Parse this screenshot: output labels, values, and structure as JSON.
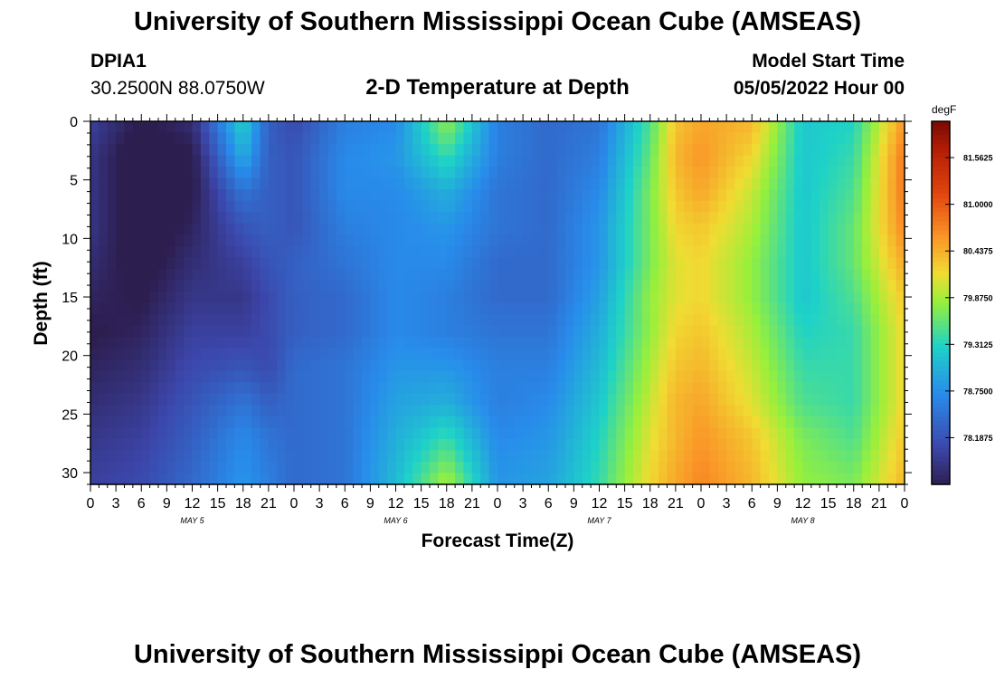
{
  "header": {
    "title": "University of Southern Mississippi Ocean Cube (AMSEAS)",
    "station_id": "DPIA1",
    "station_coords": "30.2500N  88.0750W",
    "plot_title": "2-D Temperature at Depth",
    "start_label": "Model Start Time",
    "start_value": "05/05/2022 Hour 00"
  },
  "footer": {
    "title": "University of Southern Mississippi Ocean Cube (AMSEAS)"
  },
  "chart_data": {
    "type": "heatmap",
    "xlabel": "Forecast Time(Z)",
    "ylabel": "Depth (ft)",
    "x_hours": [
      0,
      6,
      12,
      18,
      21,
      24,
      30,
      36,
      42,
      48,
      54,
      60,
      66,
      69,
      72,
      78,
      84,
      90,
      96
    ],
    "y_depth_ft": [
      0,
      3,
      6,
      9,
      12,
      15,
      18,
      21,
      24,
      27,
      31
    ],
    "values_degF": [
      [
        78.0,
        77.6,
        77.8,
        79.3,
        78.3,
        78.1,
        78.6,
        78.7,
        79.8,
        78.6,
        78.4,
        78.5,
        79.5,
        80.3,
        80.5,
        80.4,
        79.2,
        79.3,
        80.6
      ],
      [
        77.9,
        77.4,
        77.6,
        79.0,
        78.3,
        78.2,
        78.7,
        78.8,
        79.4,
        78.6,
        78.4,
        78.6,
        79.6,
        80.4,
        80.6,
        80.2,
        79.2,
        79.4,
        80.8
      ],
      [
        77.9,
        77.4,
        77.6,
        78.5,
        78.3,
        78.2,
        78.7,
        78.7,
        79.0,
        78.5,
        78.4,
        78.7,
        79.7,
        80.3,
        80.5,
        80.0,
        79.2,
        79.5,
        80.8
      ],
      [
        77.9,
        77.4,
        77.7,
        78.2,
        78.3,
        78.2,
        78.6,
        78.7,
        78.8,
        78.5,
        78.4,
        78.8,
        79.7,
        80.2,
        80.3,
        79.9,
        79.2,
        79.6,
        80.7
      ],
      [
        77.8,
        77.5,
        77.8,
        78.0,
        78.2,
        78.3,
        78.5,
        78.7,
        78.7,
        78.4,
        78.4,
        78.8,
        79.7,
        80.1,
        80.2,
        79.8,
        79.2,
        79.6,
        80.5
      ],
      [
        77.7,
        77.6,
        77.9,
        77.9,
        78.1,
        78.3,
        78.4,
        78.7,
        78.6,
        78.4,
        78.4,
        78.9,
        79.8,
        80.1,
        80.2,
        79.8,
        79.2,
        79.5,
        80.3
      ],
      [
        77.6,
        77.7,
        78.0,
        78.0,
        78.1,
        78.3,
        78.4,
        78.7,
        78.6,
        78.5,
        78.5,
        79.0,
        79.8,
        80.2,
        80.3,
        79.9,
        79.3,
        79.4,
        80.2
      ],
      [
        77.7,
        77.8,
        78.1,
        78.2,
        78.1,
        78.4,
        78.5,
        78.8,
        78.8,
        78.6,
        78.6,
        79.1,
        79.9,
        80.3,
        80.4,
        80.0,
        79.4,
        79.4,
        80.2
      ],
      [
        77.8,
        77.9,
        78.2,
        78.5,
        78.3,
        78.4,
        78.5,
        78.9,
        79.0,
        78.6,
        78.7,
        79.2,
        80.0,
        80.4,
        80.5,
        80.1,
        79.5,
        79.4,
        80.2
      ],
      [
        77.9,
        78.0,
        78.3,
        78.7,
        78.5,
        78.4,
        78.5,
        79.0,
        79.4,
        78.7,
        78.8,
        79.3,
        80.1,
        80.4,
        80.6,
        80.3,
        79.7,
        79.5,
        80.3
      ],
      [
        78.0,
        78.1,
        78.4,
        78.8,
        78.6,
        78.4,
        78.5,
        79.1,
        79.9,
        78.8,
        78.9,
        79.4,
        80.2,
        80.5,
        80.7,
        80.4,
        79.8,
        79.7,
        80.4
      ]
    ],
    "xlim": [
      0,
      96
    ],
    "ylim": [
      0,
      31
    ],
    "y_ticks": [
      0,
      5,
      10,
      15,
      20,
      25,
      30
    ],
    "x_tick_labels": [
      "0",
      "3",
      "6",
      "9",
      "12",
      "15",
      "18",
      "21",
      "0",
      "3",
      "6",
      "9",
      "12",
      "15",
      "18",
      "21",
      "0",
      "3",
      "6",
      "9",
      "12",
      "15",
      "18",
      "21",
      "0",
      "3",
      "6",
      "9",
      "12",
      "15",
      "18",
      "21",
      "0"
    ],
    "day_labels": [
      "MAY 5",
      "MAY 6",
      "MAY 7",
      "MAY 8"
    ],
    "colorbar": {
      "unit": "degF",
      "min": 77.625,
      "max": 82.0,
      "tick_values": [
        81.5625,
        81.0,
        80.4375,
        79.875,
        79.3125,
        78.75,
        78.1875
      ],
      "tick_labels": [
        "81.5625",
        "81.0000",
        "80.4375",
        "79.8750",
        "79.3125",
        "78.7500",
        "78.1875"
      ]
    },
    "grid": false
  }
}
